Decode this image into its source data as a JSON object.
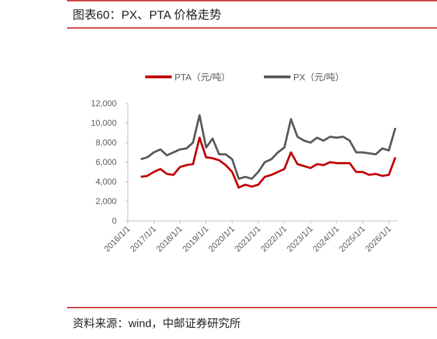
{
  "header": {
    "title": "图表60：PX、PTA 价格走势"
  },
  "chart_data": {
    "type": "line",
    "categories": [
      "2016/1/1",
      null,
      null,
      null,
      "2017/1/1",
      null,
      null,
      null,
      "2018/1/1",
      null,
      null,
      null,
      "2019/1/1",
      null,
      null,
      null,
      "2020/1/1",
      null,
      null,
      null,
      "2021/1/1",
      null,
      null,
      null,
      "2022/1/1",
      null,
      null,
      null,
      "2023/1/1",
      null,
      null,
      null,
      "2024/1/1",
      null,
      null,
      null,
      "2025/1/1",
      null,
      null,
      null,
      "2026/1/1",
      null
    ],
    "series": [
      {
        "name": "PTA（元/吨）",
        "color": "#c00000",
        "values": [
          null,
          null,
          4500,
          4600,
          5000,
          5300,
          4800,
          4700,
          5500,
          5700,
          5800,
          8500,
          6500,
          6400,
          6200,
          5700,
          5000,
          3400,
          3700,
          3500,
          3700,
          4500,
          4700,
          5000,
          5300,
          7000,
          5800,
          5600,
          5400,
          5800,
          5700,
          6000,
          5900,
          5900,
          5900,
          5000,
          5000,
          4700,
          4800,
          4600,
          4700,
          6500
        ]
      },
      {
        "name": "PX（元/吨）",
        "color": "#595959",
        "values": [
          null,
          null,
          6300,
          6500,
          7000,
          7300,
          6700,
          7000,
          7300,
          7400,
          8000,
          10800,
          7500,
          8400,
          6800,
          6800,
          6300,
          4300,
          4500,
          4300,
          5000,
          6000,
          6300,
          7000,
          7500,
          10400,
          8600,
          8200,
          8000,
          8500,
          8200,
          8600,
          8500,
          8600,
          8200,
          7000,
          7000,
          6900,
          6800,
          7400,
          7200,
          9500
        ]
      }
    ],
    "ylim": [
      0,
      12000
    ],
    "yticks": [
      0,
      {
        "value": 2000,
        "label": "2,000"
      },
      {
        "value": 4000,
        "label": "4,000"
      },
      {
        "value": 6000,
        "label": "6,000"
      },
      {
        "value": 8000,
        "label": "8,000"
      },
      {
        "value": 10000,
        "label": "10,000"
      },
      {
        "value": 12000,
        "label": "12,000"
      }
    ],
    "grid": false
  },
  "footer": {
    "source": "资料来源：wind，中邮证券研究所"
  }
}
